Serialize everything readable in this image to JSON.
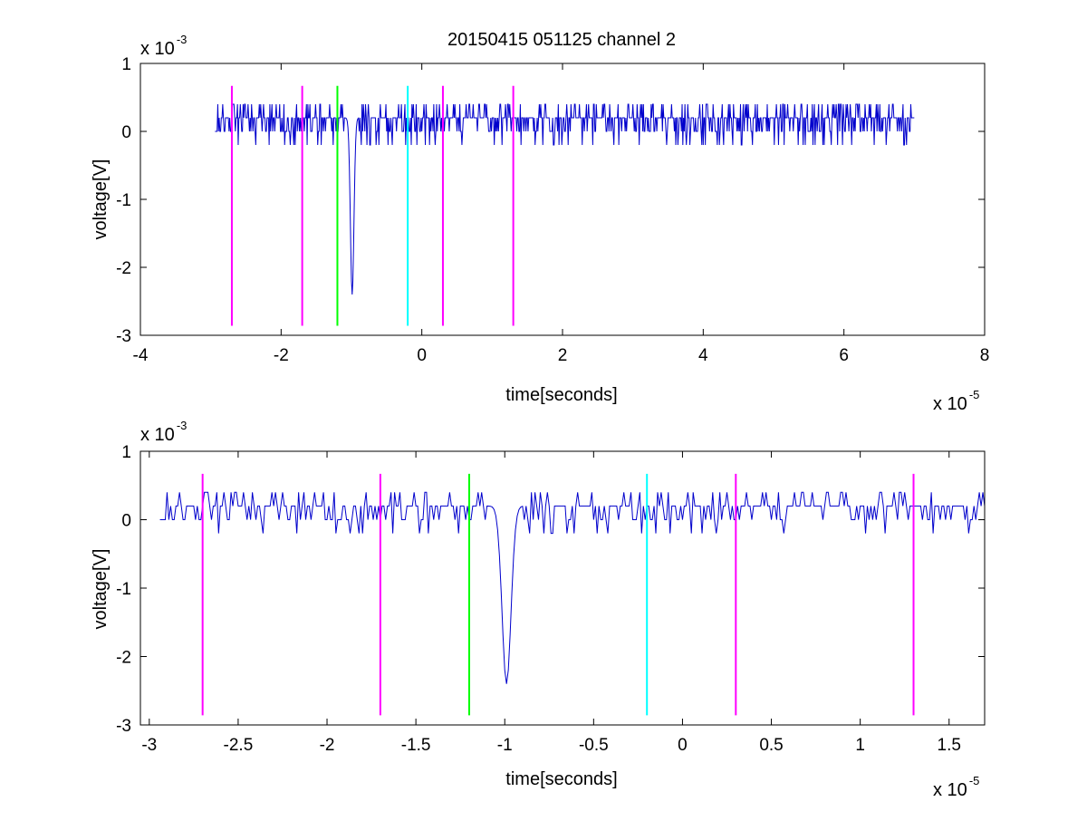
{
  "chart_data": [
    {
      "type": "line",
      "title": "20150415 051125 channel 2",
      "xlabel": "time[seconds]",
      "ylabel": "voltage[V]",
      "x_exponent_base": "x 10",
      "x_exponent_power": "-5",
      "y_exponent_base": "x 10",
      "y_exponent_power": "-3",
      "xlim": [
        -4e-05,
        8e-05
      ],
      "ylim": [
        -0.003,
        0.001
      ],
      "x_ticks": [
        -4e-05,
        -2e-05,
        0,
        2e-05,
        4e-05,
        6e-05,
        8e-05
      ],
      "x_tick_labels": [
        "-4",
        "-2",
        "0",
        "2",
        "4",
        "6",
        "8"
      ],
      "y_ticks": [
        -0.003,
        -0.002,
        -0.001,
        0,
        0.001
      ],
      "y_tick_labels": [
        "-3",
        "-2",
        "-1",
        "0",
        "1"
      ],
      "grid": false,
      "signal_color": "#0000cc",
      "signal": {
        "x_start": -2.94e-05,
        "x_end": 7e-05,
        "step": 1e-07,
        "seed": 11,
        "levels": [
          0,
          0.0002,
          0.0004
        ],
        "spike_center": -9.9e-06,
        "spike_min": -0.0026
      },
      "markers": [
        {
          "x": -2.7e-05,
          "color": "#ff00ff"
        },
        {
          "x": -1.7e-05,
          "color": "#ff00ff"
        },
        {
          "x": -1.2e-05,
          "color": "#00ff00"
        },
        {
          "x": -2e-06,
          "color": "#00ffff"
        },
        {
          "x": 3e-06,
          "color": "#ff00ff"
        },
        {
          "x": 1.3e-05,
          "color": "#ff00ff"
        }
      ],
      "marker_y_range": [
        -0.00286,
        0.00067
      ]
    },
    {
      "type": "line",
      "title": "",
      "xlabel": "time[seconds]",
      "ylabel": "voltage[V]",
      "x_exponent_base": "x 10",
      "x_exponent_power": "-5",
      "y_exponent_base": "x 10",
      "y_exponent_power": "-3",
      "xlim": [
        -3.05e-05,
        1.7e-05
      ],
      "ylim": [
        -0.003,
        0.001
      ],
      "x_ticks": [
        -3e-05,
        -2.5e-05,
        -2e-05,
        -1.5e-05,
        -1e-05,
        -5e-06,
        0,
        5e-06,
        1e-05,
        1.5e-05
      ],
      "x_tick_labels": [
        "-3",
        "-2.5",
        "-2",
        "-1.5",
        "-1",
        "-0.5",
        "0",
        "0.5",
        "1",
        "1.5"
      ],
      "y_ticks": [
        -0.003,
        -0.002,
        -0.001,
        0,
        0.001
      ],
      "y_tick_labels": [
        "-3",
        "-2",
        "-1",
        "0",
        "1"
      ],
      "grid": false,
      "signal_color": "#0000cc",
      "signal": {
        "x_start": -2.94e-05,
        "x_end": 1.7e-05,
        "step": 1e-07,
        "seed": 11,
        "levels": [
          0,
          0.0002,
          0.0004
        ],
        "spike_center": -9.9e-06,
        "spike_min": -0.0026
      },
      "markers": [
        {
          "x": -2.7e-05,
          "color": "#ff00ff"
        },
        {
          "x": -1.7e-05,
          "color": "#ff00ff"
        },
        {
          "x": -1.2e-05,
          "color": "#00ff00"
        },
        {
          "x": -2e-06,
          "color": "#00ffff"
        },
        {
          "x": 3e-06,
          "color": "#ff00ff"
        },
        {
          "x": 1.3e-05,
          "color": "#ff00ff"
        }
      ],
      "marker_y_range": [
        -0.00286,
        0.00067
      ]
    }
  ]
}
